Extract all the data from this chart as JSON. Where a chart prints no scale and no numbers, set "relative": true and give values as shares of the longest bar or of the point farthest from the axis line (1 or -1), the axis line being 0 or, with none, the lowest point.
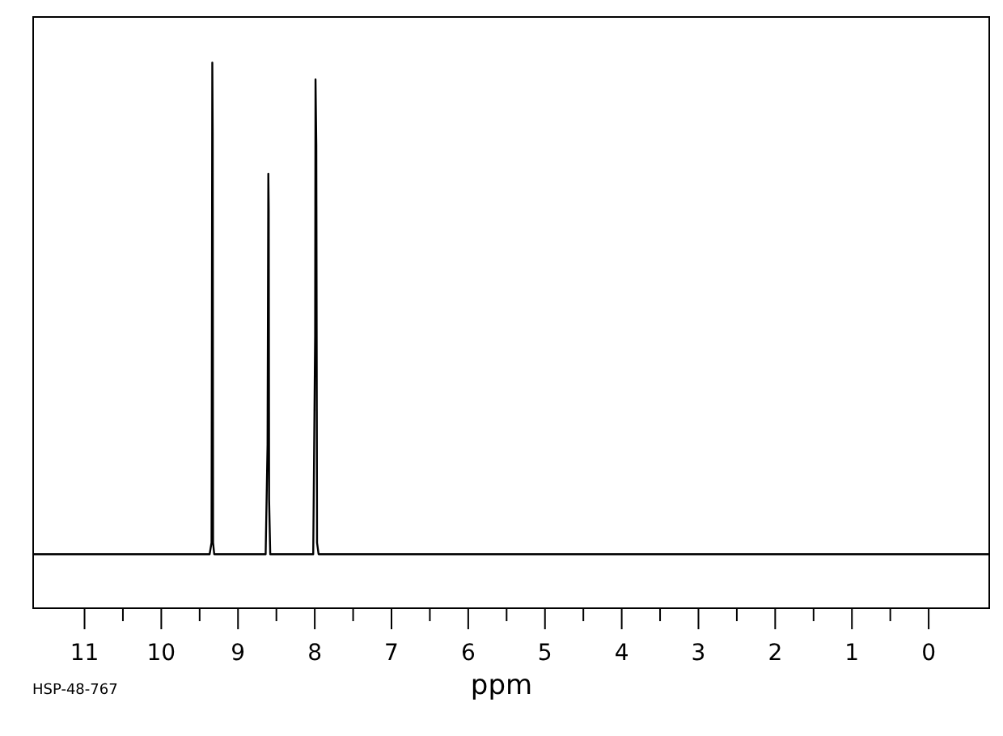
{
  "chart_data": {
    "type": "line",
    "relative": true,
    "xlabel": "ppm",
    "annotations": [
      "HSP-48-767"
    ],
    "xlim": [
      11.68,
      -0.8
    ],
    "xticks": [
      11,
      {
        "value": 10.5,
        "label": null
      },
      10,
      {
        "value": 9.5,
        "label": null
      },
      9,
      {
        "value": 8.5,
        "label": null
      },
      8,
      {
        "value": 7.5,
        "label": null
      },
      7,
      {
        "value": 6.5,
        "label": null
      },
      6,
      {
        "value": 5.5,
        "label": null
      },
      5,
      {
        "value": 4.5,
        "label": null
      },
      4,
      {
        "value": 3.5,
        "label": null
      },
      3,
      {
        "value": 2.5,
        "label": null
      },
      2,
      {
        "value": 1.5,
        "label": null
      },
      1,
      {
        "value": 0.5,
        "label": null
      },
      0
    ],
    "x": [
      11.68,
      9.37,
      9.345,
      9.335,
      9.33,
      9.325,
      9.31,
      9.29,
      8.64,
      8.615,
      8.605,
      8.6,
      8.595,
      8.58,
      8.56,
      8.02,
      7.995,
      7.99,
      7.98,
      7.97,
      7.95,
      -0.8
    ],
    "series": [
      {
        "color": "#000000",
        "values": [
          0.099,
          0.099,
          0.12,
          1,
          0.87,
          0.12,
          0.099,
          0.099,
          0.099,
          0.3,
          0.796,
          0.73,
          0.2,
          0.099,
          0.099,
          0.099,
          0.5,
          0.969,
          0.85,
          0.12,
          0.099,
          0.099
        ]
      }
    ],
    "grid": false,
    "legend": false,
    "marker": "none",
    "line_style": "solid"
  }
}
